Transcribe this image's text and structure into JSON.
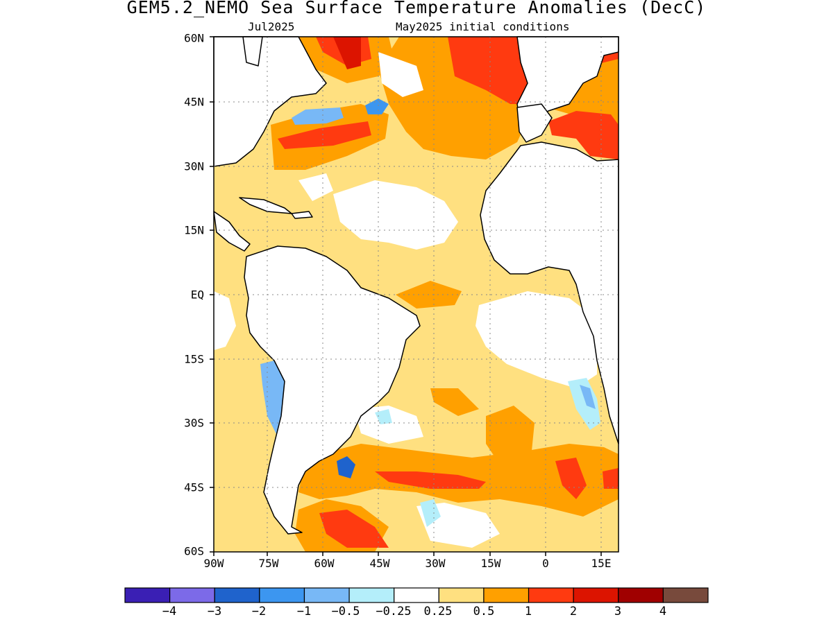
{
  "title": "GEM5.2_NEMO Sea Surface Temperature Anomalies (DecC)",
  "valid_month": "Jul2025",
  "init_conditions": "May2025 initial conditions",
  "lat_labels": [
    "60N",
    "45N",
    "30N",
    "15N",
    "EQ",
    "15S",
    "30S",
    "45S",
    "60S"
  ],
  "lon_labels": [
    "90W",
    "75W",
    "60W",
    "45W",
    "30W",
    "15W",
    "0",
    "15E"
  ],
  "colorbar": {
    "colors": [
      "#3a1fb4",
      "#7c6ae8",
      "#1f63cc",
      "#3c96f0",
      "#78b8f6",
      "#b4eefa",
      "#ffffff",
      "#ffe080",
      "#ffa000",
      "#ff3a10",
      "#dc1400",
      "#a00000",
      "#784a3c"
    ],
    "labels": [
      "−4",
      "−3",
      "−2",
      "−1",
      "−0.5",
      "−0.25",
      "0.25",
      "0.5",
      "1",
      "2",
      "3",
      "4"
    ]
  },
  "map": {
    "lat_range": [
      -60,
      60
    ],
    "lon_range": [
      -90,
      15
    ],
    "grid_lines": "dotted",
    "land_color": "#ffffff",
    "coastline_color": "#000000"
  }
}
